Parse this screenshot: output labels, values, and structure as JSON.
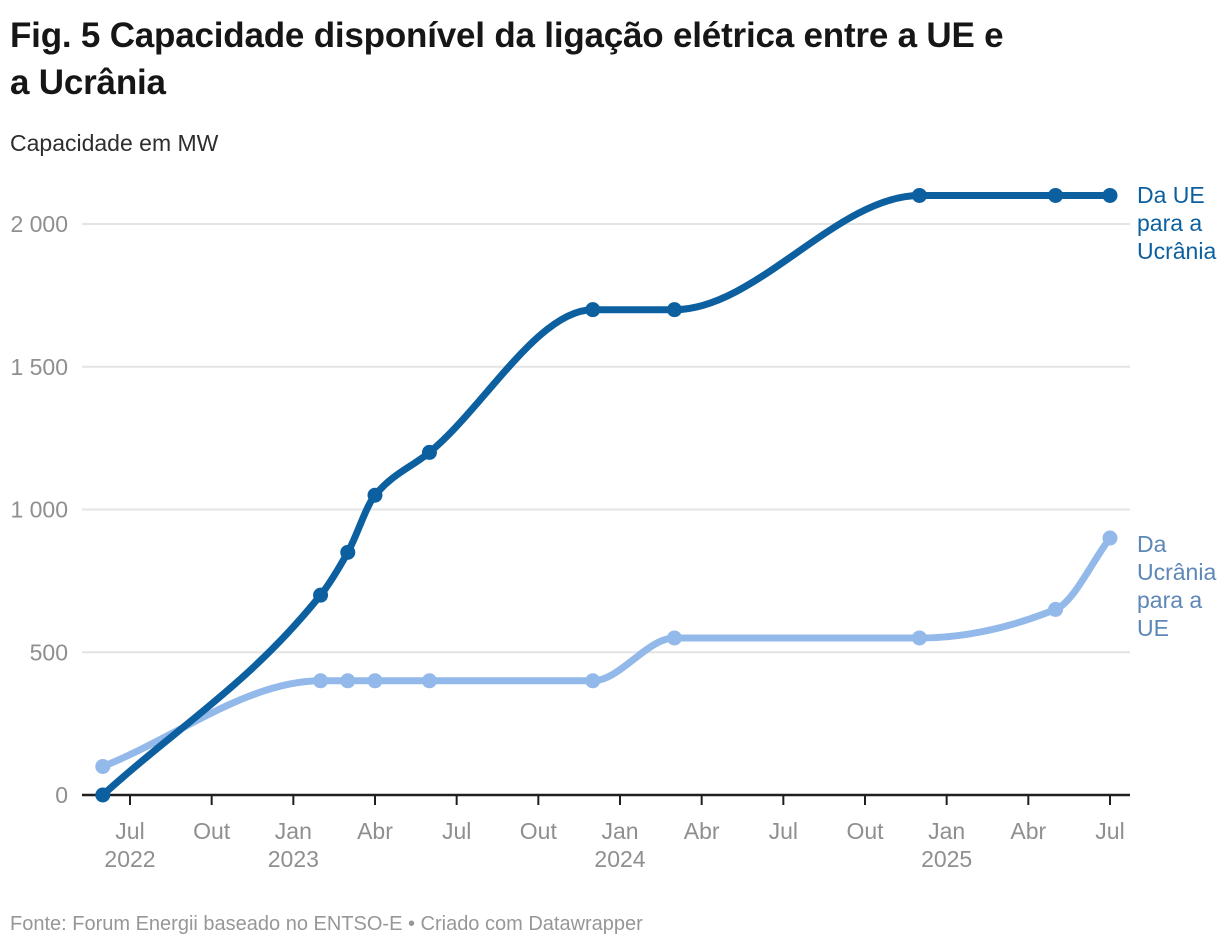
{
  "header": {
    "title": "Fig. 5 Capacidade disponível da ligação elétrica entre a UE e\na Ucrânia",
    "subtitle": "Capacidade em MW"
  },
  "footer": {
    "text": "Fonte: Forum Energii baseado no ENTSO-E • Criado com Datawrapper"
  },
  "chart_data": {
    "type": "line",
    "title": "Fig. 5 Capacidade disponível da ligação elétrica entre a UE e a Ucrânia",
    "ylabel": "Capacidade em MW",
    "xlabel": "",
    "ylim": [
      0,
      2200
    ],
    "grid": "horizontal-only",
    "legend_position": "right-direct-labels",
    "curve": "monotone",
    "yticks": [
      {
        "v": 0,
        "label": "0"
      },
      {
        "v": 500,
        "label": "500"
      },
      {
        "v": 1000,
        "label": "1 000"
      },
      {
        "v": 1500,
        "label": "1 500"
      },
      {
        "v": 2000,
        "label": "2 000"
      }
    ],
    "xticks": [
      {
        "m": 1,
        "label": "Jul",
        "year": "2022"
      },
      {
        "m": 4,
        "label": "Out",
        "year": ""
      },
      {
        "m": 7,
        "label": "Jan",
        "year": "2023"
      },
      {
        "m": 10,
        "label": "Abr",
        "year": ""
      },
      {
        "m": 13,
        "label": "Jul",
        "year": ""
      },
      {
        "m": 16,
        "label": "Out",
        "year": ""
      },
      {
        "m": 19,
        "label": "Jan",
        "year": "2024"
      },
      {
        "m": 22,
        "label": "Abr",
        "year": ""
      },
      {
        "m": 25,
        "label": "Jul",
        "year": ""
      },
      {
        "m": 28,
        "label": "Out",
        "year": ""
      },
      {
        "m": 31,
        "label": "Jan",
        "year": "2025"
      },
      {
        "m": 34,
        "label": "Abr",
        "year": ""
      },
      {
        "m": 37,
        "label": "Jul",
        "year": ""
      }
    ],
    "series": [
      {
        "name": "Da UE para a Ucrânia",
        "label": "Da UE\npara a\nUcrânia",
        "color": "#0d60a0",
        "label_color": "#0d60a0",
        "points": [
          {
            "date": "Jun 2022",
            "m": 0,
            "v": 0
          },
          {
            "date": "Fev 2023",
            "m": 8,
            "v": 700
          },
          {
            "date": "Mar 2023",
            "m": 9,
            "v": 850
          },
          {
            "date": "Abr 2023",
            "m": 10,
            "v": 1050
          },
          {
            "date": "Jun 2023",
            "m": 12,
            "v": 1200
          },
          {
            "date": "Dez 2023",
            "m": 18,
            "v": 1700
          },
          {
            "date": "Mar 2024",
            "m": 21,
            "v": 1700
          },
          {
            "date": "Dez 2024",
            "m": 30,
            "v": 2100
          },
          {
            "date": "Mai 2025",
            "m": 35,
            "v": 2100
          },
          {
            "date": "Jul 2025",
            "m": 37,
            "v": 2100
          }
        ]
      },
      {
        "name": "Da Ucrânia para a UE",
        "label": "Da\nUcrânia\npara a\nUE",
        "color": "#92b9e9",
        "label_color": "#5d87b7",
        "points": [
          {
            "date": "Jun 2022",
            "m": 0,
            "v": 100
          },
          {
            "date": "Fev 2023",
            "m": 8,
            "v": 400
          },
          {
            "date": "Mar 2023",
            "m": 9,
            "v": 400
          },
          {
            "date": "Abr 2023",
            "m": 10,
            "v": 400
          },
          {
            "date": "Jun 2023",
            "m": 12,
            "v": 400
          },
          {
            "date": "Dez 2023",
            "m": 18,
            "v": 400
          },
          {
            "date": "Mar 2024",
            "m": 21,
            "v": 550
          },
          {
            "date": "Dez 2024",
            "m": 30,
            "v": 550
          },
          {
            "date": "Mai 2025",
            "m": 35,
            "v": 650
          },
          {
            "date": "Jul 2025",
            "m": 37,
            "v": 900
          }
        ]
      }
    ],
    "colors": {
      "grid": "#e4e4e4",
      "axis": "#1f1f1f",
      "tick_text": "#8f8f8f"
    }
  }
}
